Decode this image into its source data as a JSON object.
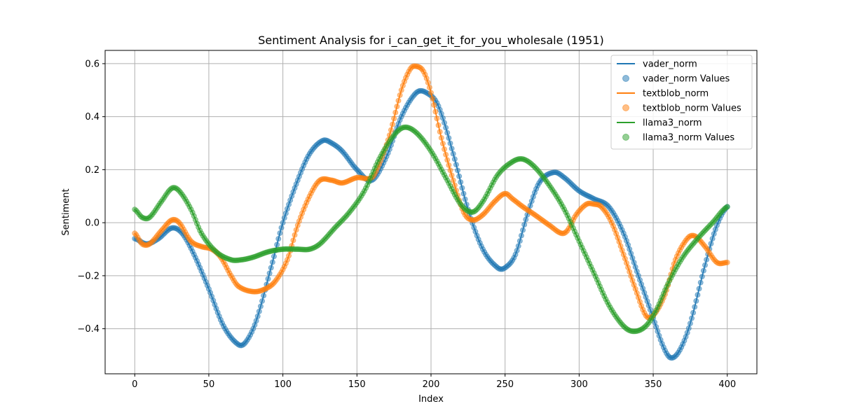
{
  "chart_data": {
    "type": "line",
    "title": "Sentiment Analysis for i_can_get_it_for_you_wholesale (1951)",
    "xlabel": "Index",
    "ylabel": "Sentiment",
    "xlim": [
      -20,
      420
    ],
    "ylim": [
      -0.57,
      0.65
    ],
    "x_ticks": [
      0,
      50,
      100,
      150,
      200,
      250,
      300,
      350,
      400
    ],
    "x_tick_labels": [
      "0",
      "50",
      "100",
      "150",
      "200",
      "250",
      "300",
      "350",
      "400"
    ],
    "y_ticks": [
      -0.4,
      -0.2,
      0.0,
      0.2,
      0.4,
      0.6
    ],
    "y_tick_labels": [
      "−0.4",
      "−0.2",
      "0.0",
      "0.2",
      "0.4",
      "0.6"
    ],
    "grid": true,
    "legend_position": "top-right",
    "legend": [
      "vader_norm",
      "vader_norm Values",
      "textblob_norm",
      "textblob_norm Values",
      "llama3_norm",
      "llama3_norm Values"
    ],
    "series": [
      {
        "name": "vader_norm",
        "color": "#1f77b4",
        "x": [
          0,
          8,
          16,
          25,
          32,
          40,
          50,
          60,
          70,
          75,
          82,
          92,
          100,
          110,
          118,
          127,
          133,
          140,
          150,
          160,
          170,
          180,
          190,
          197,
          205,
          215,
          225,
          235,
          245,
          250,
          257,
          265,
          273,
          283,
          290,
          300,
          310,
          320,
          330,
          340,
          350,
          357,
          362,
          368,
          375,
          385,
          393,
          400
        ],
        "y": [
          -0.06,
          -0.08,
          -0.06,
          -0.02,
          -0.04,
          -0.12,
          -0.25,
          -0.39,
          -0.46,
          -0.45,
          -0.37,
          -0.17,
          0.0,
          0.16,
          0.26,
          0.31,
          0.3,
          0.27,
          0.2,
          0.16,
          0.25,
          0.4,
          0.49,
          0.49,
          0.44,
          0.26,
          0.05,
          -0.1,
          -0.17,
          -0.17,
          -0.12,
          0.03,
          0.15,
          0.19,
          0.17,
          0.12,
          0.09,
          0.06,
          -0.04,
          -0.2,
          -0.36,
          -0.47,
          -0.51,
          -0.48,
          -0.38,
          -0.16,
          -0.01,
          0.06
        ]
      },
      {
        "name": "textblob_norm",
        "color": "#ff7f0e",
        "x": [
          0,
          5,
          10,
          18,
          25,
          30,
          38,
          45,
          52,
          58,
          65,
          70,
          80,
          88,
          95,
          103,
          110,
          118,
          125,
          133,
          140,
          150,
          160,
          165,
          172,
          180,
          186,
          190,
          195,
          200,
          207,
          215,
          222,
          228,
          235,
          243,
          250,
          255,
          262,
          270,
          280,
          288,
          292,
          298,
          305,
          310,
          315,
          322,
          330,
          338,
          345,
          350,
          358,
          365,
          373,
          378,
          385,
          393,
          400
        ],
        "y": [
          -0.04,
          -0.08,
          -0.08,
          -0.03,
          0.01,
          0.0,
          -0.07,
          -0.09,
          -0.1,
          -0.13,
          -0.2,
          -0.24,
          -0.26,
          -0.25,
          -0.22,
          -0.14,
          -0.01,
          0.1,
          0.16,
          0.16,
          0.15,
          0.17,
          0.17,
          0.22,
          0.33,
          0.5,
          0.58,
          0.59,
          0.57,
          0.49,
          0.32,
          0.16,
          0.04,
          0.01,
          0.03,
          0.08,
          0.11,
          0.09,
          0.06,
          0.03,
          -0.01,
          -0.04,
          -0.03,
          0.03,
          0.07,
          0.07,
          0.06,
          0.0,
          -0.12,
          -0.25,
          -0.35,
          -0.35,
          -0.27,
          -0.14,
          -0.06,
          -0.05,
          -0.09,
          -0.15,
          -0.15
        ]
      },
      {
        "name": "llama3_norm",
        "color": "#2ca02c",
        "x": [
          0,
          5,
          10,
          18,
          25,
          30,
          38,
          45,
          55,
          65,
          72,
          80,
          90,
          100,
          110,
          118,
          125,
          135,
          145,
          155,
          165,
          175,
          182,
          190,
          200,
          210,
          220,
          228,
          235,
          245,
          255,
          262,
          270,
          280,
          290,
          300,
          310,
          320,
          330,
          337,
          345,
          352,
          360,
          370,
          380,
          390,
          400
        ],
        "y": [
          0.05,
          0.02,
          0.02,
          0.08,
          0.13,
          0.12,
          0.05,
          -0.04,
          -0.11,
          -0.14,
          -0.14,
          -0.13,
          -0.11,
          -0.1,
          -0.1,
          -0.1,
          -0.08,
          -0.02,
          0.04,
          0.12,
          0.24,
          0.33,
          0.36,
          0.34,
          0.27,
          0.17,
          0.07,
          0.04,
          0.08,
          0.18,
          0.23,
          0.24,
          0.21,
          0.14,
          0.05,
          -0.07,
          -0.19,
          -0.31,
          -0.39,
          -0.41,
          -0.39,
          -0.33,
          -0.23,
          -0.13,
          -0.06,
          0.0,
          0.06
        ]
      }
    ],
    "scatter_series": [
      {
        "name": "vader_norm Values",
        "source": "vader_norm",
        "color": "#1f77b4",
        "n": 401
      },
      {
        "name": "textblob_norm Values",
        "source": "textblob_norm",
        "color": "#ff7f0e",
        "n": 401
      },
      {
        "name": "llama3_norm Values",
        "source": "llama3_norm",
        "color": "#2ca02c",
        "n": 401
      }
    ]
  }
}
